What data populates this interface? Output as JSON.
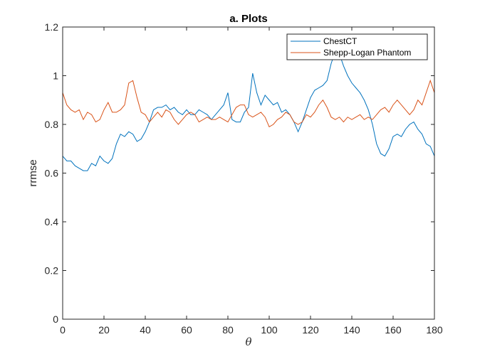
{
  "chart_data": {
    "type": "line",
    "title": "a. Plots",
    "xlabel": "θ",
    "ylabel": "rrmse",
    "xlim": [
      0,
      180
    ],
    "ylim": [
      0,
      1.2
    ],
    "xticks": [
      0,
      20,
      40,
      60,
      80,
      100,
      120,
      140,
      160,
      180
    ],
    "yticks": [
      0,
      0.2,
      0.4,
      0.6,
      0.8,
      1,
      1.2
    ],
    "xtick_labels": [
      "0",
      "20",
      "40",
      "60",
      "80",
      "100",
      "120",
      "140",
      "160",
      "180"
    ],
    "ytick_labels": [
      "0",
      "0.2",
      "0.4",
      "0.6",
      "0.8",
      "1",
      "1.2"
    ],
    "grid": false,
    "legend_position": "top-right",
    "series": [
      {
        "name": "ChestCT",
        "color": "#0072bd",
        "x": [
          0,
          2,
          4,
          6,
          8,
          10,
          12,
          14,
          16,
          18,
          20,
          22,
          24,
          26,
          28,
          30,
          32,
          34,
          36,
          38,
          40,
          42,
          44,
          46,
          48,
          50,
          52,
          54,
          56,
          58,
          60,
          62,
          64,
          66,
          68,
          70,
          72,
          74,
          76,
          78,
          80,
          82,
          84,
          86,
          88,
          90,
          92,
          94,
          96,
          98,
          100,
          102,
          104,
          106,
          108,
          110,
          112,
          114,
          116,
          118,
          120,
          122,
          124,
          126,
          128,
          130,
          132,
          134,
          136,
          138,
          140,
          142,
          144,
          146,
          148,
          150,
          152,
          154,
          156,
          158,
          160,
          162,
          164,
          166,
          168,
          170,
          172,
          174,
          176,
          178,
          180
        ],
        "values": [
          0.67,
          0.65,
          0.65,
          0.63,
          0.62,
          0.61,
          0.61,
          0.64,
          0.63,
          0.67,
          0.65,
          0.64,
          0.66,
          0.72,
          0.76,
          0.75,
          0.77,
          0.76,
          0.73,
          0.74,
          0.77,
          0.81,
          0.86,
          0.87,
          0.87,
          0.88,
          0.86,
          0.87,
          0.85,
          0.84,
          0.86,
          0.84,
          0.84,
          0.86,
          0.85,
          0.84,
          0.82,
          0.84,
          0.86,
          0.88,
          0.93,
          0.82,
          0.81,
          0.81,
          0.85,
          0.87,
          1.01,
          0.93,
          0.88,
          0.92,
          0.9,
          0.88,
          0.89,
          0.85,
          0.86,
          0.84,
          0.81,
          0.77,
          0.81,
          0.86,
          0.91,
          0.94,
          0.95,
          0.96,
          0.98,
          1.05,
          1.1,
          1.09,
          1.04,
          1.0,
          0.97,
          0.95,
          0.93,
          0.9,
          0.86,
          0.8,
          0.72,
          0.68,
          0.67,
          0.7,
          0.75,
          0.76,
          0.75,
          0.78,
          0.8,
          0.81,
          0.78,
          0.76,
          0.72,
          0.71,
          0.67
        ]
      },
      {
        "name": "Shepp-Logan Phantom",
        "color": "#d95319",
        "x": [
          0,
          2,
          4,
          6,
          8,
          10,
          12,
          14,
          16,
          18,
          20,
          22,
          24,
          26,
          28,
          30,
          32,
          34,
          36,
          38,
          40,
          42,
          44,
          46,
          48,
          50,
          52,
          54,
          56,
          58,
          60,
          62,
          64,
          66,
          68,
          70,
          72,
          74,
          76,
          78,
          80,
          82,
          84,
          86,
          88,
          90,
          92,
          94,
          96,
          98,
          100,
          102,
          104,
          106,
          108,
          110,
          112,
          114,
          116,
          118,
          120,
          122,
          124,
          126,
          128,
          130,
          132,
          134,
          136,
          138,
          140,
          142,
          144,
          146,
          148,
          150,
          152,
          154,
          156,
          158,
          160,
          162,
          164,
          166,
          168,
          170,
          172,
          174,
          176,
          178,
          180
        ],
        "values": [
          0.93,
          0.88,
          0.86,
          0.85,
          0.86,
          0.82,
          0.85,
          0.84,
          0.81,
          0.82,
          0.86,
          0.89,
          0.85,
          0.85,
          0.86,
          0.88,
          0.97,
          0.98,
          0.91,
          0.85,
          0.84,
          0.81,
          0.83,
          0.85,
          0.83,
          0.86,
          0.85,
          0.82,
          0.8,
          0.82,
          0.84,
          0.85,
          0.84,
          0.81,
          0.82,
          0.83,
          0.82,
          0.82,
          0.83,
          0.82,
          0.81,
          0.84,
          0.87,
          0.88,
          0.88,
          0.84,
          0.83,
          0.84,
          0.85,
          0.83,
          0.79,
          0.8,
          0.82,
          0.83,
          0.85,
          0.84,
          0.81,
          0.8,
          0.81,
          0.84,
          0.83,
          0.85,
          0.88,
          0.9,
          0.87,
          0.83,
          0.82,
          0.83,
          0.81,
          0.83,
          0.82,
          0.83,
          0.84,
          0.82,
          0.83,
          0.82,
          0.84,
          0.86,
          0.87,
          0.85,
          0.88,
          0.9,
          0.88,
          0.86,
          0.84,
          0.86,
          0.9,
          0.88,
          0.93,
          0.98,
          0.93
        ]
      },
      {
        "name": "",
        "color": "#edb120",
        "x": [
          0,
          180
        ],
        "values": [
          0,
          0
        ]
      }
    ]
  }
}
